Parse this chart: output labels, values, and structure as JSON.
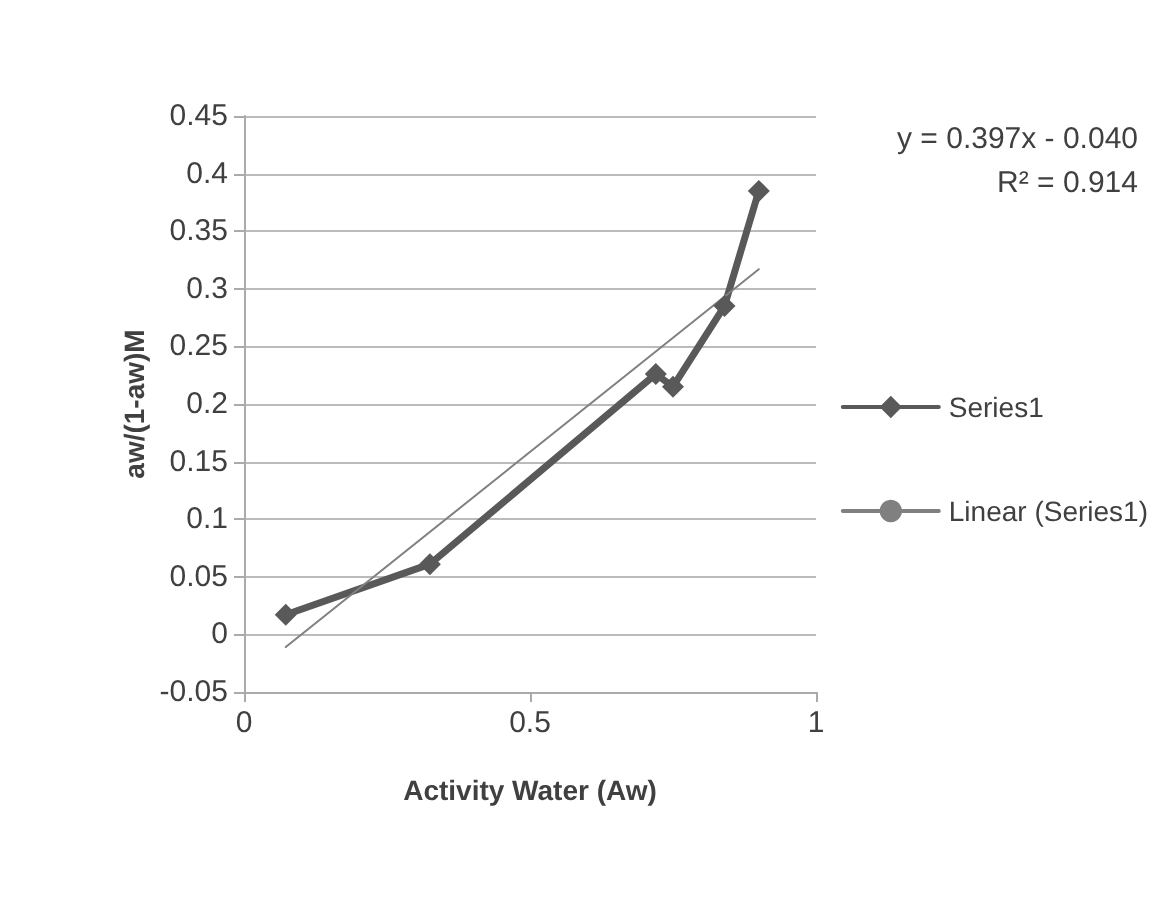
{
  "chart_data": {
    "type": "line",
    "xlabel": "Activity Water (Aw)",
    "ylabel": "aw/(1-aw)M",
    "annotations": [
      "y = 0.397x - 0.040",
      "R² = 0.914"
    ],
    "series": [
      {
        "name": "Series1",
        "color": "#595959",
        "x": [
          0.073,
          0.325,
          0.72,
          0.75,
          0.84,
          0.9
        ],
        "values": [
          0.017,
          0.061,
          0.226,
          0.215,
          0.285,
          0.385
        ],
        "marker": "diamond"
      },
      {
        "name": "Linear (Series1)",
        "color": "#808080",
        "x": [
          0.073,
          0.9
        ],
        "values": [
          -0.011,
          0.317
        ],
        "marker": "none"
      }
    ],
    "xlim": [
      0,
      1
    ],
    "xticks": [
      0,
      0.5,
      1
    ],
    "ylim": [
      -0.05,
      0.45
    ],
    "yticks": [
      -0.05,
      0,
      0.05,
      0.1,
      0.15,
      0.2,
      0.25,
      0.3,
      0.35,
      0.4,
      0.45
    ],
    "grid": "y",
    "legend": "right"
  }
}
